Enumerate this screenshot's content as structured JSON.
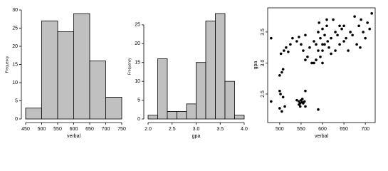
{
  "chart_data": [
    {
      "type": "histogram",
      "xlabel": "verbal",
      "ylabel": "Frequency",
      "bins": [
        450,
        500,
        550,
        600,
        650,
        700,
        750
      ],
      "values": [
        3,
        27,
        24,
        29,
        16,
        6
      ],
      "color": "#c0c0c0",
      "xlim": [
        450,
        750
      ],
      "xticks": [
        450,
        500,
        550,
        600,
        650,
        700,
        750
      ],
      "ylim": [
        0,
        30
      ],
      "yticks": [
        0,
        5,
        10,
        15,
        20,
        25,
        30
      ]
    },
    {
      "type": "histogram",
      "xlabel": "gpa",
      "ylabel": "Frequency",
      "bins": [
        2.0,
        2.2,
        2.4,
        2.6,
        2.8,
        3.0,
        3.2,
        3.4,
        3.6,
        3.8,
        4.0
      ],
      "values": [
        1,
        16,
        2,
        2,
        4,
        15,
        26,
        28,
        10,
        1
      ],
      "color": "#c0c0c0",
      "xlim": [
        2.0,
        4.0
      ],
      "xticks": [
        {
          "value": 2,
          "label": "2.0"
        },
        2.5,
        {
          "value": 3,
          "label": "3.0"
        },
        3.5,
        {
          "value": 4,
          "label": "4.0"
        }
      ],
      "ylim": [
        0,
        28
      ],
      "yticks": [
        0,
        5,
        10,
        15,
        20,
        25
      ]
    },
    {
      "type": "scatter",
      "xlabel": "verbal",
      "ylabel": "gpa",
      "color": "#000000",
      "x": [
        480,
        500,
        505,
        502,
        508,
        512,
        500,
        540,
        545,
        548,
        550,
        552,
        555,
        545,
        553,
        560,
        558,
        548,
        590,
        500,
        505,
        508,
        503,
        510,
        515,
        520,
        480,
        530,
        525,
        540,
        545,
        550,
        555,
        560,
        565,
        570,
        575,
        580,
        585,
        590,
        592,
        595,
        600,
        600,
        605,
        610,
        612,
        615,
        620,
        625,
        630,
        635,
        640,
        645,
        650,
        655,
        660,
        665,
        670,
        675,
        680,
        685,
        688,
        690,
        695,
        700,
        705,
        710,
        715,
        600,
        595,
        580,
        560,
        585,
        620,
        560,
        640,
        650,
        610,
        630,
        590,
        600,
        605
      ],
      "y": [
        2.38,
        2.27,
        2.22,
        2.5,
        2.45,
        2.3,
        2.55,
        2.4,
        2.38,
        2.35,
        2.4,
        2.37,
        2.35,
        2.33,
        2.42,
        2.3,
        2.38,
        2.3,
        2.25,
        2.8,
        2.85,
        2.9,
        3.15,
        3.2,
        3.25,
        3.18,
        3.4,
        3.4,
        3.3,
        3.35,
        3.42,
        3.3,
        3.2,
        3.05,
        3.1,
        3.25,
        3.0,
        3.0,
        3.3,
        3.5,
        3.65,
        3.4,
        3.3,
        3.55,
        3.45,
        3.6,
        3.35,
        3.25,
        3.4,
        3.7,
        3.5,
        3.45,
        3.3,
        3.55,
        3.6,
        3.4,
        3.2,
        3.5,
        3.45,
        3.75,
        3.3,
        3.6,
        3.25,
        3.7,
        3.5,
        3.4,
        3.65,
        3.55,
        3.8,
        3.0,
        3.1,
        3.35,
        3.45,
        3.05,
        3.15,
        2.55,
        3.6,
        3.35,
        3.7,
        3.2,
        3.2,
        3.2,
        3.3
      ],
      "xlim": [
        472,
        723
      ],
      "xticks": [
        500,
        550,
        600,
        650,
        700
      ],
      "ylim": [
        2.04,
        3.89
      ],
      "yticks": [
        2.5,
        {
          "value": 3,
          "label": "3.0"
        },
        3.5
      ]
    }
  ]
}
